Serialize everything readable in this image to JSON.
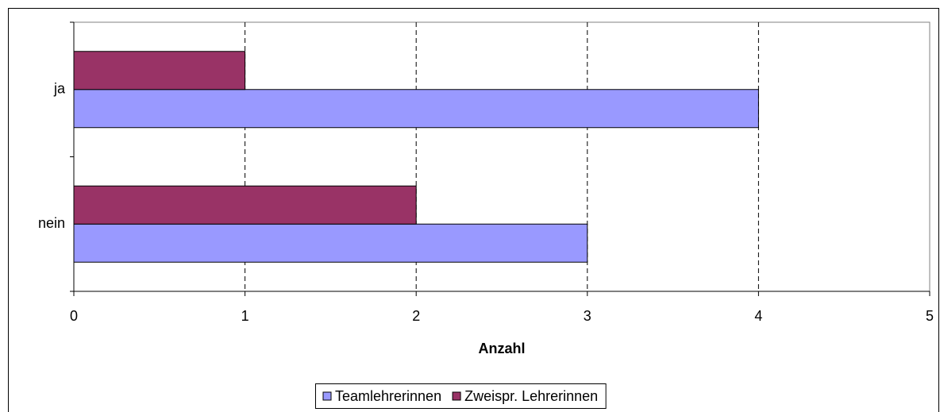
{
  "chart_data": {
    "type": "hbar",
    "categories": [
      "ja",
      "nein"
    ],
    "series": [
      {
        "name": "Teamlehrerinnen",
        "color": "#9999ff",
        "values": [
          4,
          3
        ]
      },
      {
        "name": "Zweispr. Lehrerinnen",
        "color": "#993366",
        "values": [
          1,
          2
        ]
      }
    ],
    "xlabel": "Anzahl",
    "xlim": [
      0,
      5
    ],
    "xticks": [
      0,
      1,
      2,
      3,
      4,
      5
    ],
    "grid": true,
    "legend": "bottom"
  }
}
